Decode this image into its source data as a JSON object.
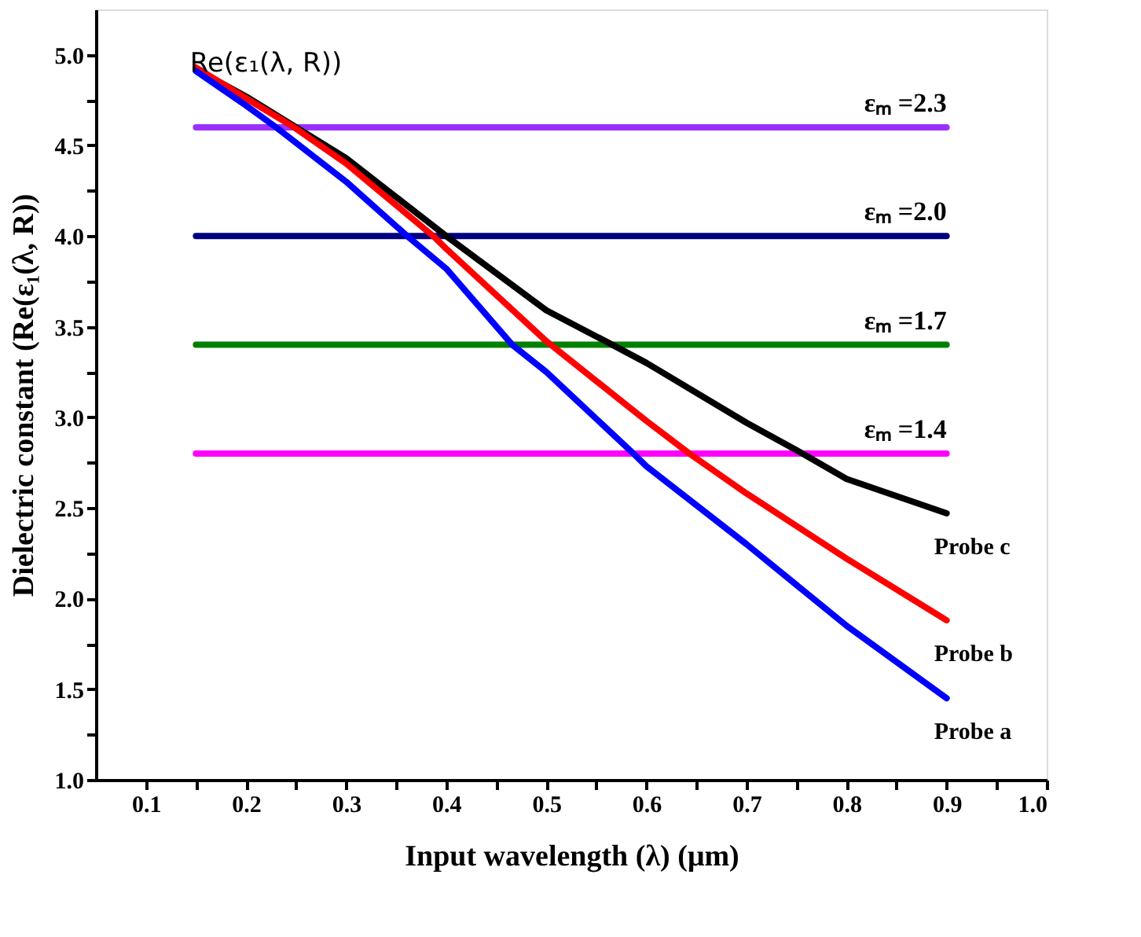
{
  "chart_data": {
    "type": "line",
    "xlabel": "Input wavelength (λ)  (μm)",
    "ylabel": "Dielectric constant (Re(ε₁(λ, R))",
    "xlim": [
      0.05,
      1.0
    ],
    "xticks": [
      0.1,
      {
        "value": 0.15,
        "label": null
      },
      0.2,
      {
        "value": 0.25,
        "label": null
      },
      0.3,
      {
        "value": 0.35,
        "label": null
      },
      0.4,
      {
        "value": 0.45,
        "label": null
      },
      0.5,
      {
        "value": 0.55,
        "label": null
      },
      0.6,
      {
        "value": 0.65,
        "label": null
      },
      0.7,
      {
        "value": 0.75,
        "label": null
      },
      0.8,
      {
        "value": 0.85,
        "label": null
      },
      0.9,
      {
        "value": 0.95,
        "label": null
      },
      {
        "value": 1.0,
        "label": "1.0"
      }
    ],
    "ylim": [
      1.0,
      5.25
    ],
    "yticks": [
      {
        "value": 1.0,
        "label": "1.0"
      },
      {
        "value": 1.25,
        "label": null
      },
      1.5,
      {
        "value": 1.75,
        "label": null
      },
      {
        "value": 2.0,
        "label": "2.0"
      },
      {
        "value": 2.25,
        "label": null
      },
      2.5,
      {
        "value": 2.75,
        "label": null
      },
      {
        "value": 3.0,
        "label": "3.0"
      },
      {
        "value": 3.25,
        "label": null
      },
      3.5,
      {
        "value": 3.75,
        "label": null
      },
      {
        "value": 4.0,
        "label": "4.0"
      },
      {
        "value": 4.25,
        "label": null
      },
      4.5,
      {
        "value": 4.75,
        "label": null
      },
      {
        "value": 5.0,
        "label": "5.0"
      }
    ],
    "grid": false,
    "legend": false,
    "marker": "none",
    "line_style": "solid",
    "annotations": [
      {
        "text": "Re(ε₁(λ, R))",
        "x": 0.22,
        "y": 4.75
      }
    ],
    "series": [
      {
        "name": "εₘ =2.3",
        "color": "#9b30ff",
        "x": [
          0.15,
          0.9
        ],
        "values": [
          4.6,
          4.6
        ]
      },
      {
        "name": "εₘ =2.0",
        "color": "#000080",
        "x": [
          0.15,
          0.9
        ],
        "values": [
          4.0,
          4.0
        ]
      },
      {
        "name": "εₘ =1.7",
        "color": "#008000",
        "x": [
          0.15,
          0.9
        ],
        "values": [
          3.4,
          3.4
        ]
      },
      {
        "name": "εₘ =1.4",
        "color": "#ff00ff",
        "x": [
          0.15,
          0.9
        ],
        "values": [
          2.8,
          2.8
        ]
      },
      {
        "name": "Probe c",
        "color": "#000000",
        "x": [
          0.15,
          0.2,
          0.25,
          0.3,
          0.4,
          0.5,
          0.566,
          0.6,
          0.7,
          0.756,
          0.8,
          0.9
        ],
        "values": [
          4.92,
          4.77,
          4.6,
          4.43,
          4.0,
          3.59,
          3.4,
          3.3,
          2.97,
          2.8,
          2.66,
          2.47
        ]
      },
      {
        "name": "Probe b",
        "color": "#ff0000",
        "x": [
          0.15,
          0.2,
          0.248,
          0.3,
          0.387,
          0.4,
          0.5,
          0.6,
          0.643,
          0.7,
          0.8,
          0.9
        ],
        "values": [
          4.93,
          4.76,
          4.6,
          4.4,
          4.0,
          3.93,
          3.42,
          2.98,
          2.8,
          2.58,
          2.22,
          1.88
        ]
      },
      {
        "name": "Probe a",
        "color": "#0000ff",
        "x": [
          0.15,
          0.2,
          0.23,
          0.3,
          0.361,
          0.4,
          0.466,
          0.5,
          0.587,
          0.6,
          0.7,
          0.8,
          0.9
        ],
        "values": [
          4.91,
          4.72,
          4.6,
          4.3,
          4.0,
          3.82,
          3.4,
          3.25,
          2.8,
          2.73,
          2.3,
          1.85,
          1.45
        ]
      }
    ]
  }
}
